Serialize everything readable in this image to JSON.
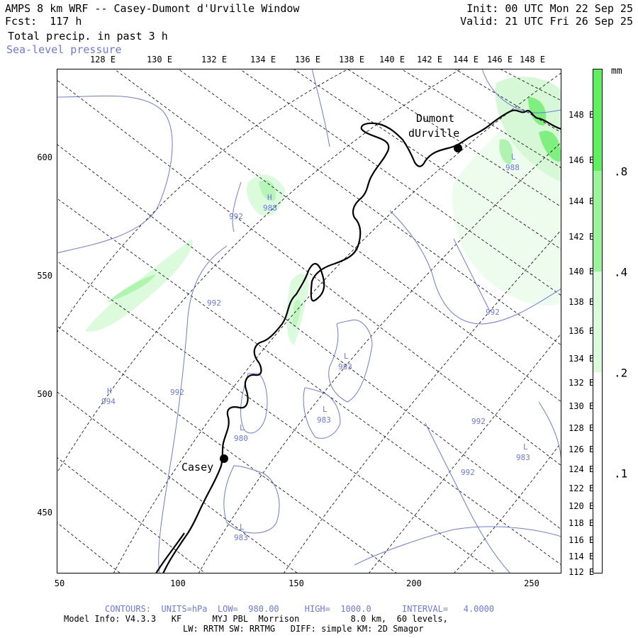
{
  "header": {
    "title": "AMPS 8 km WRF -- Casey-Dumont d'Urville Window",
    "fcst": "Fcst:  117 h",
    "field": "Total precip. in past 3 h",
    "overlay": "Sea-level pressure",
    "init": "Init: 00 UTC Mon 22 Sep 25",
    "valid": "Valid: 21 UTC Fri 26 Sep 25"
  },
  "top_longitudes": [
    "128 E",
    "130 E",
    "132 E",
    "134 E",
    "136 E",
    "138 E",
    "140 E",
    "142 E",
    "144 E",
    "146 E",
    "148 E"
  ],
  "x_axis_ticks": [
    "50",
    "100",
    "150",
    "200",
    "250"
  ],
  "y_axis_ticks": [
    "600",
    "550",
    "500",
    "450"
  ],
  "right_longitudes": [
    "148 E",
    "146 E",
    "144 E",
    "142 E",
    "140 E",
    "138 E",
    "136 E",
    "134 E",
    "132 E",
    "130 E",
    "128 E",
    "126 E",
    "124 E",
    "122 E",
    "120 E",
    "118 E",
    "116 E",
    "114 E",
    "112 E"
  ],
  "colorbar": {
    "unit": "mm",
    "labels": [
      ".8",
      ".4",
      ".2",
      ".1"
    ],
    "colors": [
      "#5df25d",
      "#9af59a",
      "#dcfadc",
      "#ffffff"
    ]
  },
  "stations": [
    {
      "name_line1": "Dumont",
      "name_line2": "dUrville"
    },
    {
      "name_line1": "Casey",
      "name_line2": ""
    }
  ],
  "pressure_labels": [
    "988",
    "992",
    "988",
    "992",
    "983",
    "983",
    "992",
    "992",
    "992",
    "992",
    "980",
    "983",
    "983",
    "994"
  ],
  "pressure_centers": [
    "L",
    "H",
    "L",
    "L",
    "L",
    "L",
    "H",
    "L"
  ],
  "footer": {
    "contours": "CONTOURS:  UNITS=hPa  LOW=  980.00     HIGH=  1000.0      INTERVAL=   4.0000",
    "model_info": "Model Info: V4.3.3   KF      MYJ PBL  Morrison          8.0 km,  60 levels,",
    "physics": "LW: RRTM SW: RRTMG   DIFF: simple KM: 2D Smagor"
  },
  "style": {
    "contour_color": "#6b78e8",
    "coast_color": "#000000",
    "grid_color": "#000000"
  }
}
